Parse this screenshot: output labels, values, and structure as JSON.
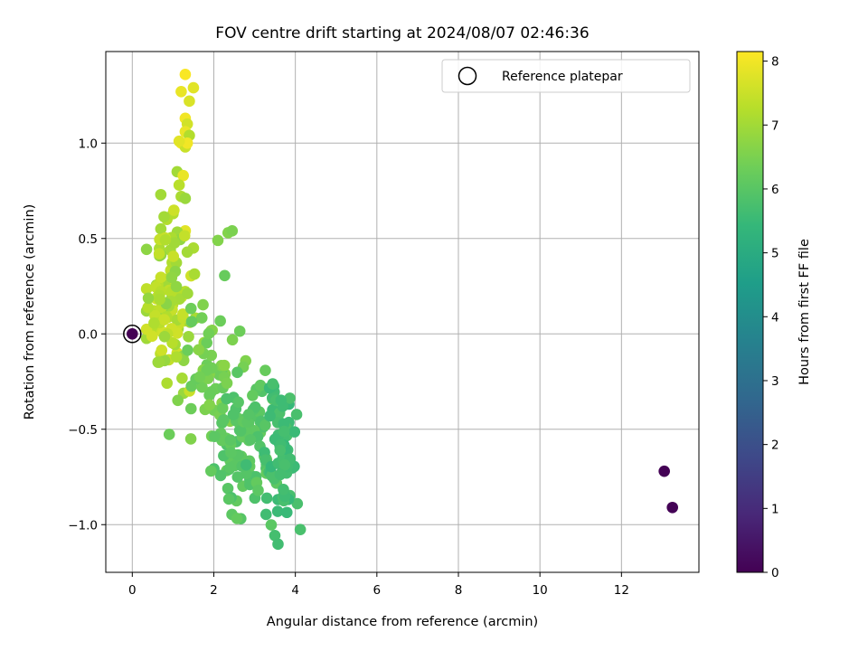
{
  "chart_data": {
    "type": "scatter",
    "title": "FOV centre drift starting at 2024/08/07 02:46:36",
    "xlabel": "Angular distance from reference (arcmin)",
    "ylabel": "Rotation from reference (arcmin)",
    "xlim": [
      -0.65,
      13.9
    ],
    "ylim": [
      -1.25,
      1.48
    ],
    "x_ticks": [
      0,
      2,
      4,
      6,
      8,
      10,
      12
    ],
    "y_ticks": [
      -1.0,
      -0.5,
      0.0,
      0.5,
      1.0
    ],
    "y_tick_labels": [
      "−1.0",
      "−0.5",
      "0.0",
      "0.5",
      "1.0"
    ],
    "grid": true,
    "legend": {
      "placement": "top-right",
      "entries": [
        "Reference platepar"
      ]
    },
    "colorbar": {
      "label": "Hours from first FF file",
      "range": [
        0,
        8.15
      ],
      "ticks": [
        0,
        1,
        2,
        3,
        4,
        5,
        6,
        7,
        8
      ],
      "colormap": "viridis"
    },
    "colormap_stops": [
      "#440154",
      "#482878",
      "#3e4989",
      "#31688e",
      "#26828e",
      "#1f9e89",
      "#35b779",
      "#6ece58",
      "#b5de2b",
      "#fde725"
    ],
    "reference_point": {
      "x": 0,
      "y": 0
    },
    "seed": 20240807,
    "series": [
      {
        "name": "",
        "points": [
          [
            0,
            0,
            0
          ],
          [
            13.05,
            -0.72,
            0.02
          ],
          [
            13.25,
            -0.91,
            0.05
          ],
          [
            1.3,
            1.36,
            8.1
          ],
          [
            1.2,
            1.27,
            7.9
          ],
          [
            1.5,
            1.29,
            7.8
          ],
          [
            1.4,
            1.22,
            7.7
          ],
          [
            1.3,
            1.13,
            8.0
          ],
          [
            1.35,
            1.1,
            7.6
          ],
          [
            1.3,
            1.06,
            7.9
          ],
          [
            1.4,
            1.04,
            7.2
          ],
          [
            1.2,
            1.0,
            8.1
          ],
          [
            1.3,
            0.98,
            7.5
          ],
          [
            1.35,
            1.0,
            8.0
          ],
          [
            1.15,
            1.01,
            7.8
          ],
          [
            1.1,
            0.85,
            7.0
          ],
          [
            1.25,
            0.83,
            7.9
          ],
          [
            1.15,
            0.78,
            7.3
          ],
          [
            1.2,
            0.72,
            7.1
          ],
          [
            1.3,
            0.71,
            6.9
          ],
          [
            0.7,
            0.73,
            7.0
          ],
          [
            1.0,
            0.63,
            7.2
          ],
          [
            1.3,
            0.54,
            7.8
          ],
          [
            1.5,
            0.45,
            7.1
          ],
          [
            2.1,
            0.49,
            6.6
          ],
          [
            2.35,
            0.53,
            6.6
          ],
          [
            2.45,
            0.54,
            6.5
          ],
          [
            0.85,
            0.6,
            7.2
          ],
          [
            0.7,
            0.55,
            7.0
          ]
        ]
      }
    ]
  }
}
